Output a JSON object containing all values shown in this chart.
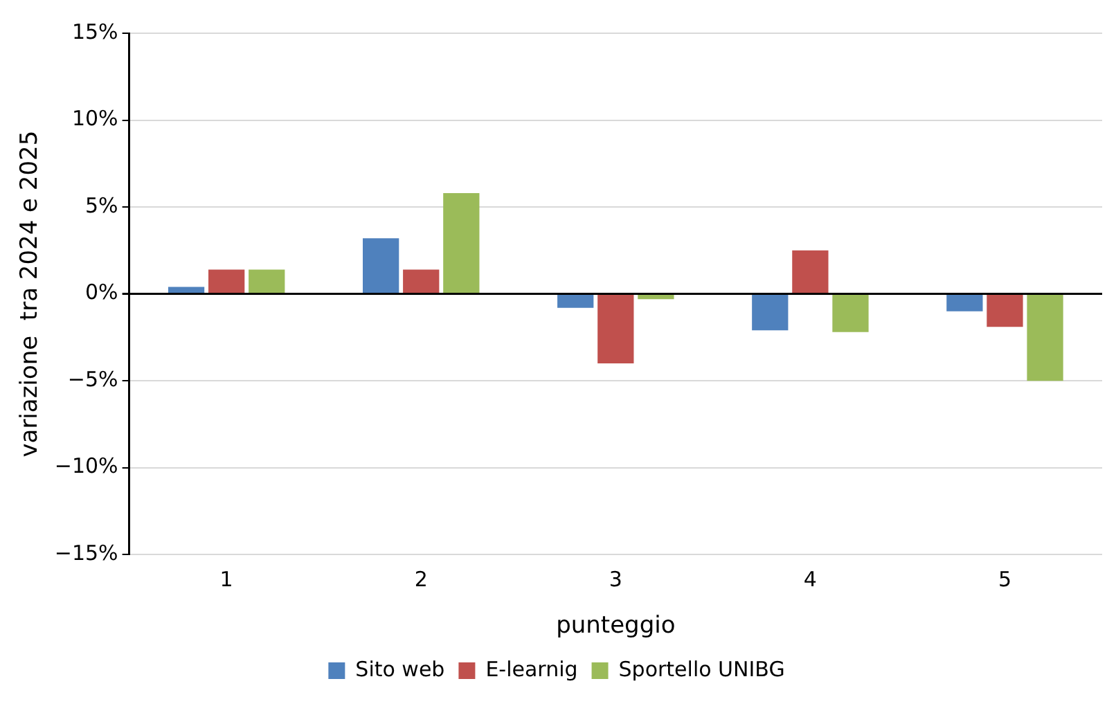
{
  "chart_data": {
    "type": "bar",
    "xlabel": "punteggio",
    "ylabel": "variazione  tra 2024 e 2025",
    "categories": [
      "1",
      "2",
      "3",
      "4",
      "5"
    ],
    "series": [
      {
        "name": "Sito web",
        "color": "#4f81bd",
        "values": [
          0.4,
          3.2,
          -0.8,
          -2.1,
          -1.0
        ]
      },
      {
        "name": "E-learnig",
        "color": "#c0504d",
        "values": [
          1.4,
          1.4,
          -4.0,
          2.5,
          -1.9
        ]
      },
      {
        "name": "Sportello UNIBG",
        "color": "#9bbb59",
        "values": [
          1.4,
          5.8,
          -0.3,
          -2.2,
          -5.0
        ]
      }
    ],
    "ylim": [
      -15,
      15
    ],
    "yticks": [
      {
        "value": -15,
        "label": "−15%"
      },
      {
        "value": -10,
        "label": "−10%"
      },
      {
        "value": -5,
        "label": "−5%"
      },
      {
        "value": 0,
        "label": "0%"
      },
      {
        "value": 5,
        "label": "5%"
      },
      {
        "value": 10,
        "label": "10%"
      },
      {
        "value": 15,
        "label": "15%"
      }
    ],
    "grid": "y",
    "legend": "bottom"
  }
}
